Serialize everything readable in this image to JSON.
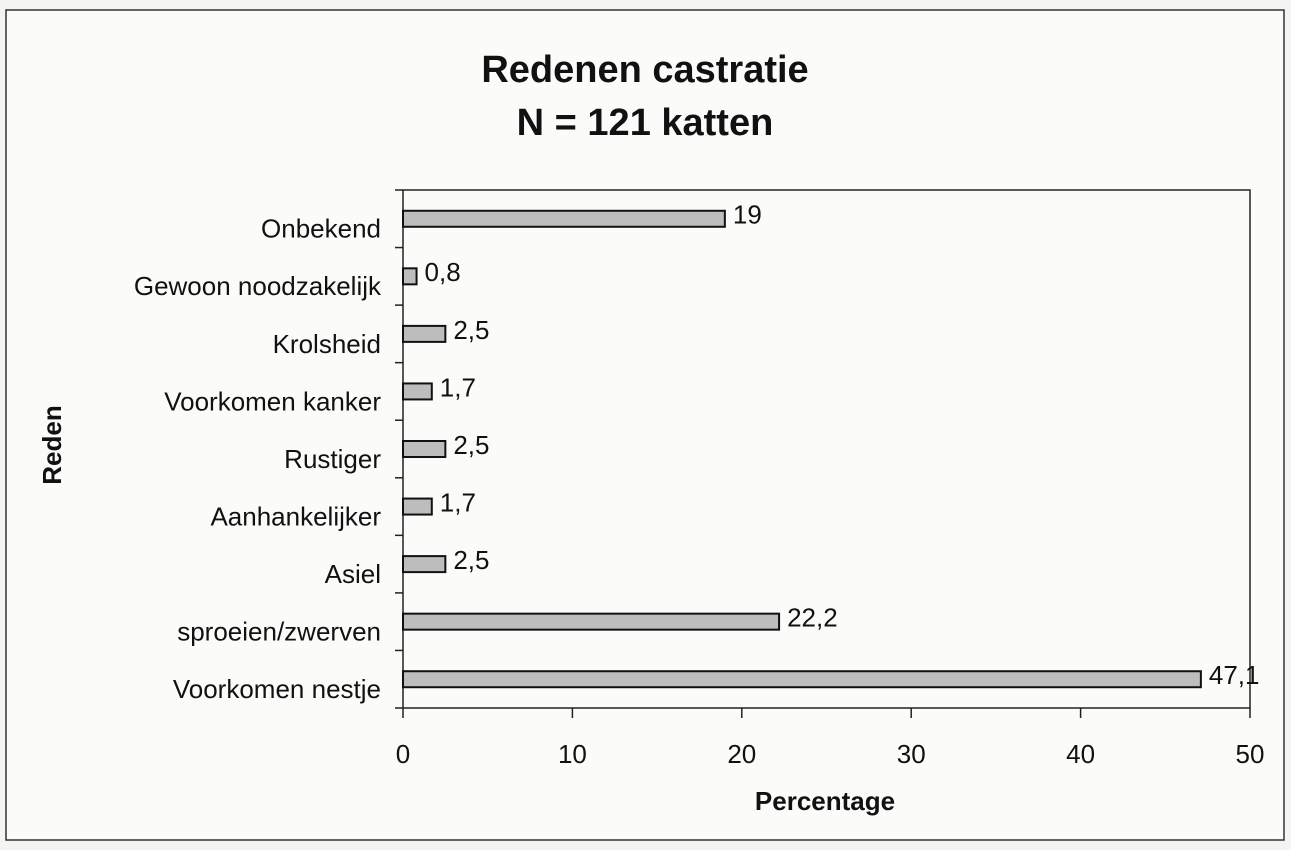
{
  "chart_data": {
    "type": "bar",
    "orientation": "horizontal",
    "title": "Redenen castratie",
    "subtitle": "N = 121 katten",
    "xlabel": "Percentage",
    "ylabel": "Reden",
    "categories": [
      "Onbekend",
      "Gewoon noodzakelijk",
      "Krolsheid",
      "Voorkomen kanker",
      "Rustiger",
      "Aanhankelijker",
      "Asiel",
      "sproeien/zwerven",
      "Voorkomen nestje"
    ],
    "values": [
      19,
      0.8,
      2.5,
      1.7,
      2.5,
      1.7,
      2.5,
      22.2,
      47.1
    ],
    "value_labels": [
      "19",
      "0,8",
      "2,5",
      "1,7",
      "2,5",
      "1,7",
      "2,5",
      "22,2",
      "47,1"
    ],
    "color": "#bdbdbd",
    "xlim": [
      0,
      50
    ],
    "xticks": [
      0,
      10,
      20,
      30,
      40,
      50
    ],
    "grid": false
  }
}
